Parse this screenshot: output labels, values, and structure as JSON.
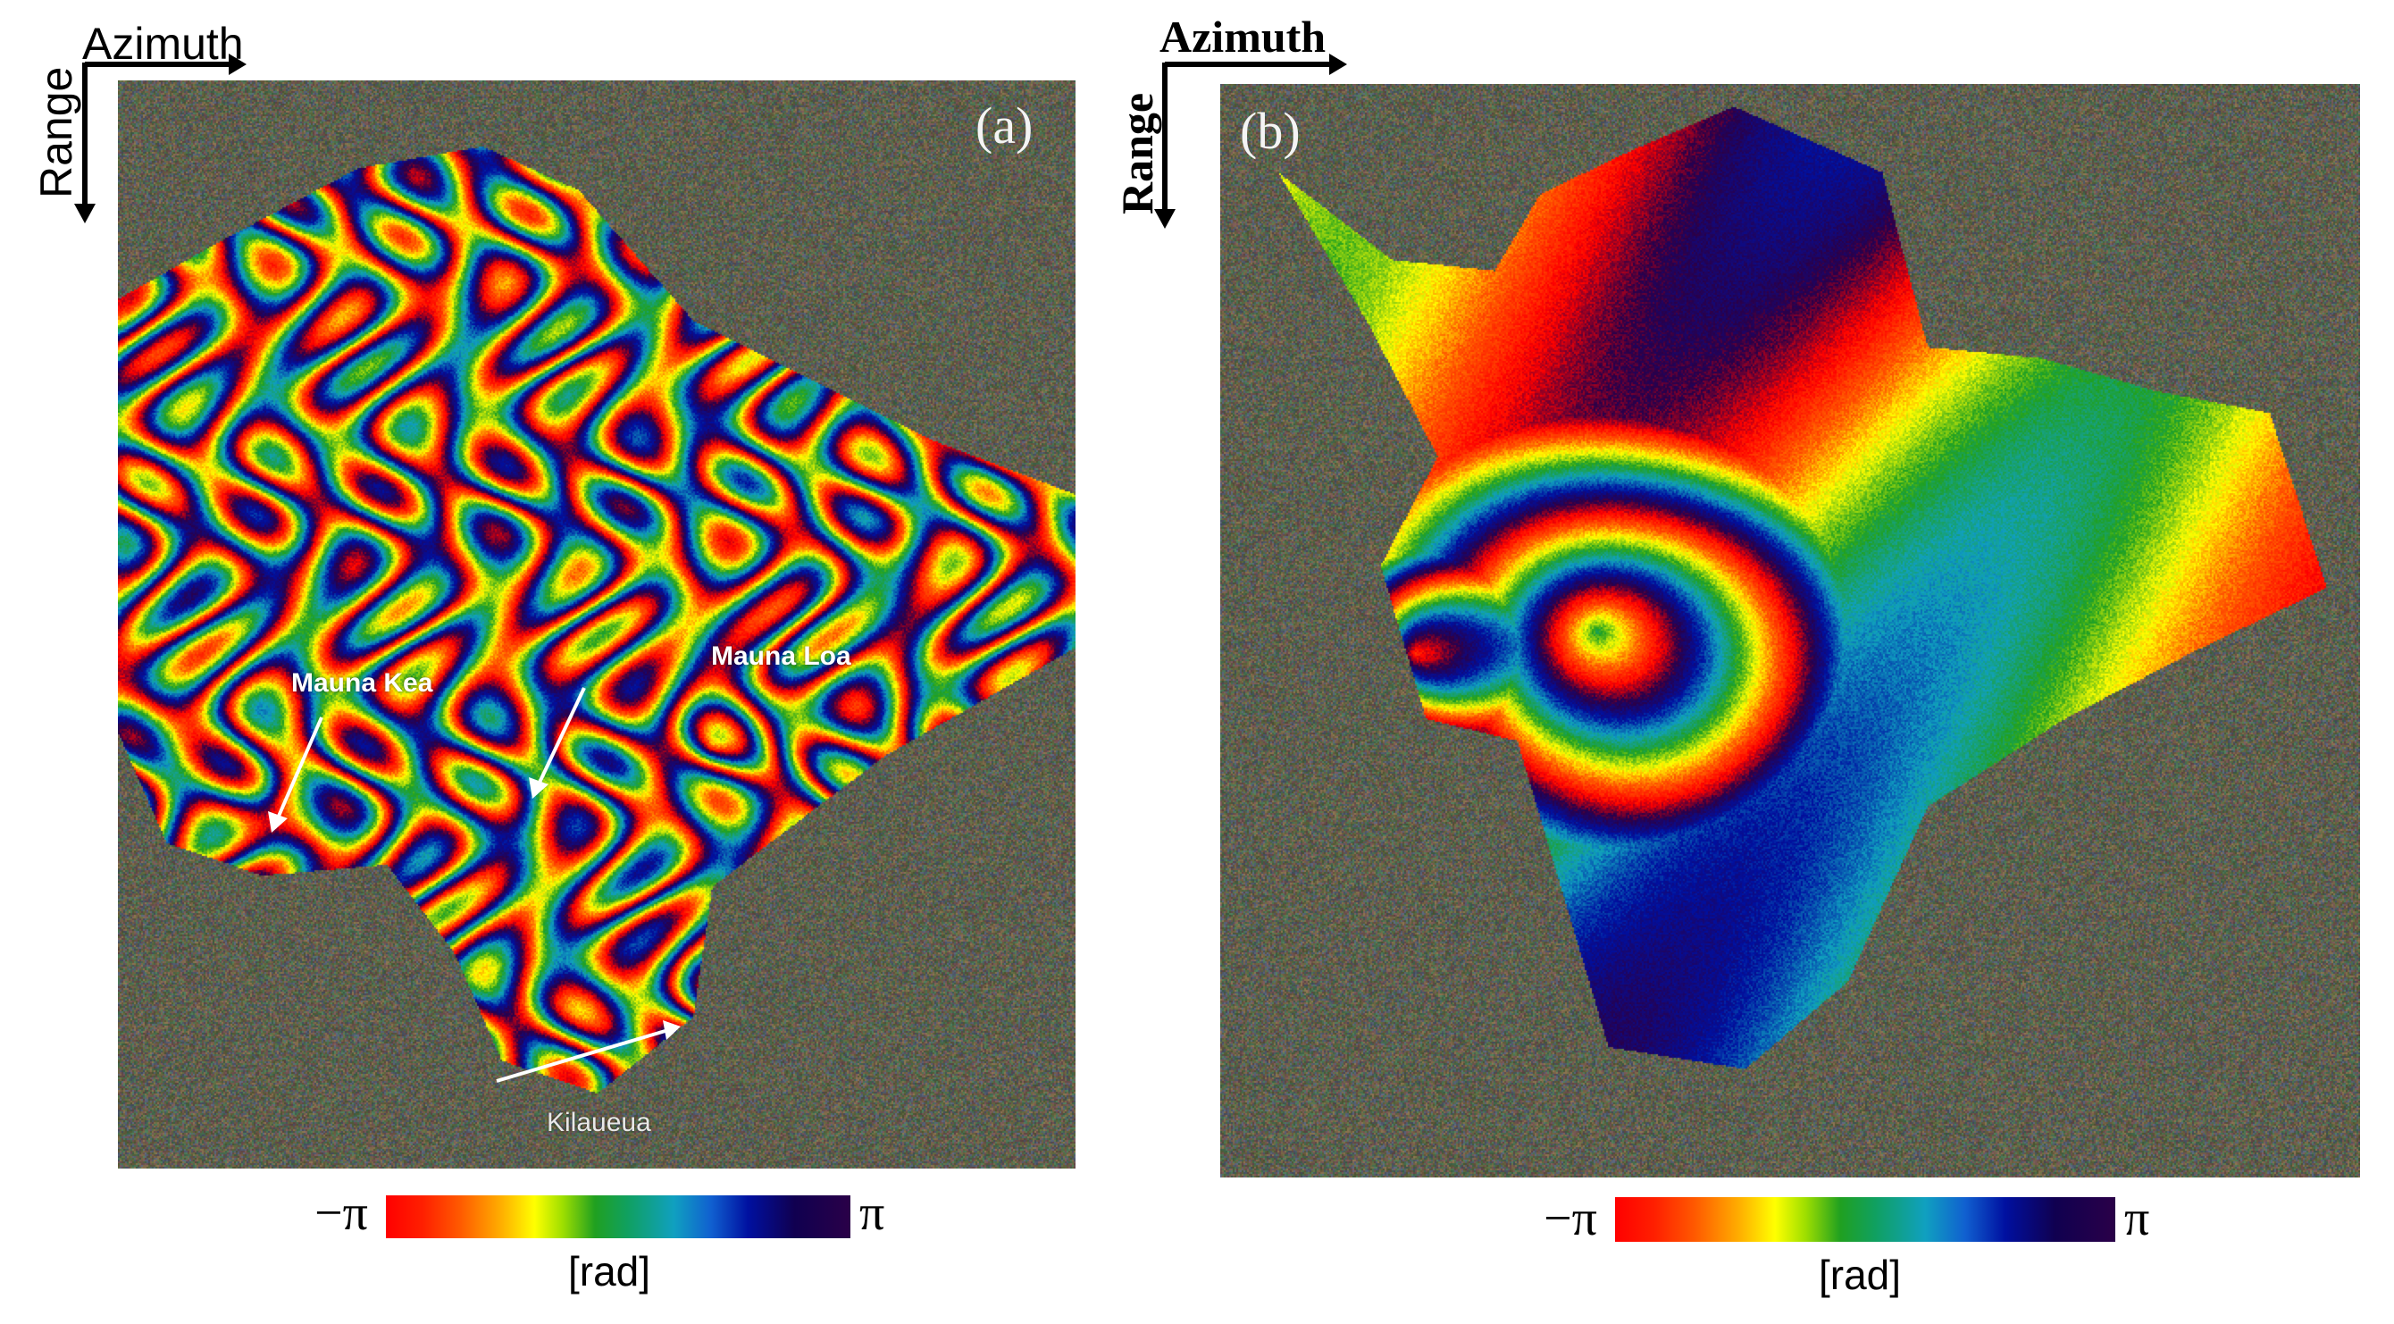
{
  "figure": {
    "panel_a": {
      "letter": "(a)",
      "azimuth_label": "Azimuth",
      "range_label": "Range",
      "places": [
        {
          "name": "Mauna Kea"
        },
        {
          "name": "Mauna Loa"
        },
        {
          "name": "Kilaueua"
        }
      ],
      "colorbar": {
        "min_label": "−π",
        "max_label": "π",
        "unit": "[rad]"
      }
    },
    "panel_b": {
      "letter": "(b)",
      "azimuth_label": "Azimuth",
      "range_label": "Range",
      "colorbar": {
        "min_label": "−π",
        "max_label": "π",
        "unit": "[rad]"
      }
    },
    "colors": {
      "noise_base": "#6f6a4a",
      "phase_cycle": [
        "#ff0000",
        "#ff5a00",
        "#ffff00",
        "#20a020",
        "#10a0c0",
        "#0010a0",
        "#2a0048"
      ]
    }
  }
}
